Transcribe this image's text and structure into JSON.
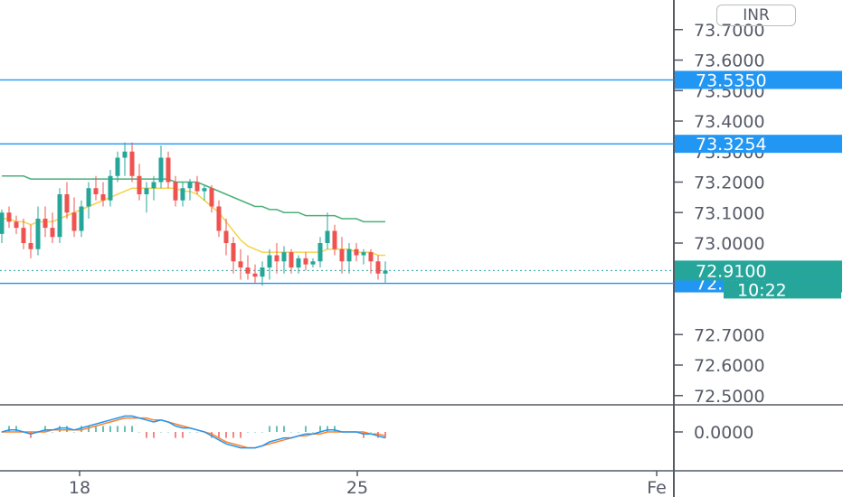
{
  "currency_label": "INR",
  "chart_data": {
    "type": "candlestick",
    "price_axis": {
      "ticks": [
        "73.7000",
        "73.6000",
        "73.5000",
        "73.4000",
        "73.3000",
        "73.2000",
        "73.1000",
        "73.0000",
        "72.7000",
        "72.6000",
        "72.5000"
      ],
      "tick_values": [
        73.7,
        73.6,
        73.5,
        73.4,
        73.3,
        73.2,
        73.1,
        73.0,
        72.7,
        72.6,
        72.5
      ]
    },
    "time_axis": {
      "ticks": [
        "18",
        "25",
        "Fe"
      ]
    },
    "horizontal_lines": [
      {
        "value": 73.535,
        "label": "73.5350",
        "color": "#2196f3"
      },
      {
        "value": 73.3254,
        "label": "73.3254",
        "color": "#2196f3"
      },
      {
        "value": 72.868,
        "label": "72.8680",
        "color": "#2196f3"
      }
    ],
    "last_price": {
      "value": 72.91,
      "label": "72.9100",
      "countdown": "10:22",
      "color": "#26a69a"
    },
    "indicator_axis": {
      "ticks": [
        "0.0000"
      ]
    },
    "colors": {
      "up": "#26a69a",
      "down": "#ef5350",
      "ma_fast": "#f5d44b",
      "ma_slow": "#4caf7a",
      "macd": "#2196f3",
      "signal": "#ff7f27",
      "hline": "#2196f3"
    },
    "candles": [
      [
        73.03,
        73.11,
        73.0,
        73.1
      ],
      [
        73.1,
        73.12,
        73.05,
        73.07
      ],
      [
        73.07,
        73.09,
        73.03,
        73.05
      ],
      [
        73.05,
        73.08,
        72.98,
        73.0
      ],
      [
        73.0,
        73.06,
        72.95,
        72.98
      ],
      [
        72.98,
        73.12,
        72.96,
        73.08
      ],
      [
        73.08,
        73.12,
        73.02,
        73.05
      ],
      [
        73.05,
        73.1,
        73.0,
        73.02
      ],
      [
        73.02,
        73.18,
        73.0,
        73.16
      ],
      [
        73.16,
        73.2,
        73.08,
        73.1
      ],
      [
        73.1,
        73.15,
        73.02,
        73.04
      ],
      [
        73.04,
        73.14,
        73.02,
        73.12
      ],
      [
        73.12,
        73.2,
        73.08,
        73.18
      ],
      [
        73.18,
        73.22,
        73.14,
        73.16
      ],
      [
        73.16,
        73.2,
        73.12,
        73.14
      ],
      [
        73.14,
        73.24,
        73.12,
        73.22
      ],
      [
        73.22,
        73.3,
        73.2,
        73.28
      ],
      [
        73.28,
        73.33,
        73.22,
        73.3
      ],
      [
        73.3,
        73.33,
        73.2,
        73.22
      ],
      [
        73.22,
        73.26,
        73.14,
        73.16
      ],
      [
        73.16,
        73.2,
        73.1,
        73.18
      ],
      [
        73.18,
        73.22,
        73.14,
        73.2
      ],
      [
        73.2,
        73.32,
        73.18,
        73.28
      ],
      [
        73.28,
        73.3,
        73.18,
        73.2
      ],
      [
        73.2,
        73.22,
        73.12,
        73.14
      ],
      [
        73.14,
        73.2,
        73.12,
        73.18
      ],
      [
        73.18,
        73.21,
        73.14,
        73.2
      ],
      [
        73.2,
        73.22,
        73.16,
        73.17
      ],
      [
        73.17,
        73.19,
        73.14,
        73.18
      ],
      [
        73.18,
        73.19,
        73.1,
        73.12
      ],
      [
        73.12,
        73.14,
        73.02,
        73.04
      ],
      [
        73.04,
        73.08,
        72.96,
        73.0
      ],
      [
        73.0,
        73.02,
        72.9,
        72.94
      ],
      [
        72.94,
        72.98,
        72.88,
        72.92
      ],
      [
        72.92,
        72.96,
        72.88,
        72.9
      ],
      [
        72.9,
        72.93,
        72.87,
        72.89
      ],
      [
        72.89,
        72.94,
        72.86,
        72.92
      ],
      [
        72.92,
        72.98,
        72.88,
        72.96
      ],
      [
        72.96,
        73.0,
        72.9,
        72.94
      ],
      [
        72.94,
        72.99,
        72.9,
        72.97
      ],
      [
        72.97,
        72.98,
        72.9,
        72.92
      ],
      [
        72.92,
        72.96,
        72.9,
        72.95
      ],
      [
        72.95,
        72.97,
        72.91,
        72.93
      ],
      [
        72.93,
        72.95,
        72.92,
        72.94
      ],
      [
        72.94,
        73.02,
        72.92,
        73.0
      ],
      [
        73.0,
        73.1,
        72.98,
        73.04
      ],
      [
        73.04,
        73.06,
        72.96,
        72.98
      ],
      [
        72.98,
        73.02,
        72.9,
        72.94
      ],
      [
        72.94,
        73.0,
        72.9,
        72.98
      ],
      [
        72.98,
        73.0,
        72.94,
        72.96
      ],
      [
        72.96,
        72.98,
        72.93,
        72.97
      ],
      [
        72.97,
        72.98,
        72.9,
        72.94
      ],
      [
        72.94,
        72.96,
        72.88,
        72.9
      ],
      [
        72.9,
        72.94,
        72.87,
        72.91
      ]
    ],
    "ma_fast": [
      73.08,
      73.08,
      73.07,
      73.07,
      73.06,
      73.07,
      73.07,
      73.07,
      73.08,
      73.09,
      73.1,
      73.11,
      73.12,
      73.13,
      73.14,
      73.15,
      73.16,
      73.17,
      73.18,
      73.18,
      73.18,
      73.18,
      73.18,
      73.18,
      73.18,
      73.17,
      73.17,
      73.16,
      73.14,
      73.12,
      73.1,
      73.07,
      73.04,
      73.01,
      72.99,
      72.98,
      72.97,
      72.97,
      72.97,
      72.97,
      72.97,
      72.97,
      72.97,
      72.97,
      72.97,
      72.98,
      72.98,
      72.98,
      72.98,
      72.97,
      72.97,
      72.97,
      72.96,
      72.96
    ],
    "ma_slow": [
      73.22,
      73.22,
      73.22,
      73.22,
      73.21,
      73.21,
      73.21,
      73.21,
      73.21,
      73.21,
      73.21,
      73.21,
      73.21,
      73.21,
      73.21,
      73.21,
      73.21,
      73.21,
      73.21,
      73.21,
      73.21,
      73.21,
      73.21,
      73.21,
      73.2,
      73.2,
      73.2,
      73.2,
      73.19,
      73.18,
      73.17,
      73.16,
      73.15,
      73.14,
      73.13,
      73.12,
      73.12,
      73.11,
      73.11,
      73.1,
      73.1,
      73.1,
      73.09,
      73.09,
      73.09,
      73.09,
      73.09,
      73.08,
      73.08,
      73.08,
      73.07,
      73.07,
      73.07,
      73.07
    ],
    "macd": [
      0.0,
      0.01,
      0.01,
      0.0,
      -0.01,
      0.0,
      0.01,
      0.01,
      0.02,
      0.02,
      0.01,
      0.02,
      0.03,
      0.04,
      0.05,
      0.06,
      0.07,
      0.08,
      0.08,
      0.07,
      0.06,
      0.05,
      0.06,
      0.05,
      0.03,
      0.02,
      0.02,
      0.01,
      0.0,
      -0.02,
      -0.04,
      -0.06,
      -0.07,
      -0.08,
      -0.08,
      -0.08,
      -0.07,
      -0.05,
      -0.04,
      -0.03,
      -0.03,
      -0.02,
      -0.01,
      -0.01,
      0.0,
      0.01,
      0.01,
      0.0,
      0.0,
      0.0,
      -0.01,
      -0.01,
      -0.02,
      -0.03
    ],
    "signal": [
      0.0,
      0.0,
      0.0,
      0.0,
      0.0,
      0.0,
      0.0,
      0.01,
      0.01,
      0.01,
      0.01,
      0.01,
      0.02,
      0.03,
      0.04,
      0.05,
      0.06,
      0.07,
      0.07,
      0.07,
      0.07,
      0.06,
      0.06,
      0.05,
      0.04,
      0.03,
      0.02,
      0.01,
      0.0,
      -0.01,
      -0.03,
      -0.05,
      -0.06,
      -0.07,
      -0.08,
      -0.08,
      -0.07,
      -0.06,
      -0.05,
      -0.04,
      -0.03,
      -0.02,
      -0.02,
      -0.01,
      -0.01,
      0.0,
      0.0,
      0.0,
      0.0,
      0.0,
      0.0,
      -0.01,
      -0.01,
      -0.02
    ]
  }
}
